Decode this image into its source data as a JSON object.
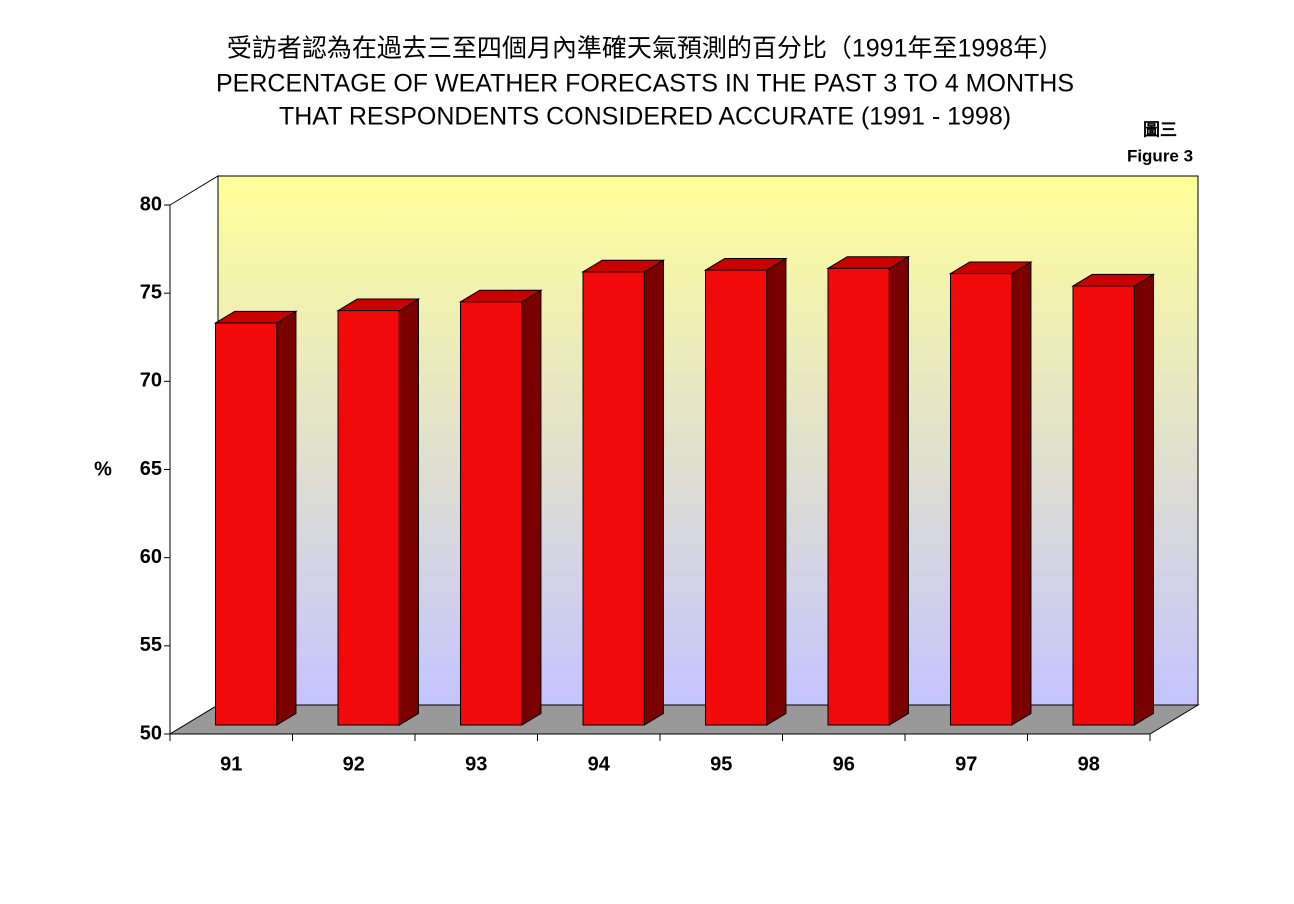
{
  "chart_data": {
    "type": "bar3d",
    "title": [
      "受訪者認為在過去三至四個月內準確天氣預測的百分比（1991年至1998年）",
      "PERCENTAGE OF WEATHER FORECASTS IN THE PAST 3 TO 4 MONTHS",
      "THAT RESPONDENTS CONSIDERED ACCURATE (1991 - 1998)"
    ],
    "figure_label": [
      "圖三",
      "Figure 3"
    ],
    "ylabel": "%",
    "categories": [
      "91",
      "92",
      "93",
      "94",
      "95",
      "96",
      "97",
      "98"
    ],
    "values": [
      72.8,
      73.5,
      74.0,
      75.7,
      75.8,
      75.9,
      75.6,
      74.9
    ],
    "color": "#f20a0a",
    "ylim": [
      50,
      80
    ],
    "yticks": [
      50,
      55,
      60,
      65,
      70,
      75,
      80
    ]
  }
}
